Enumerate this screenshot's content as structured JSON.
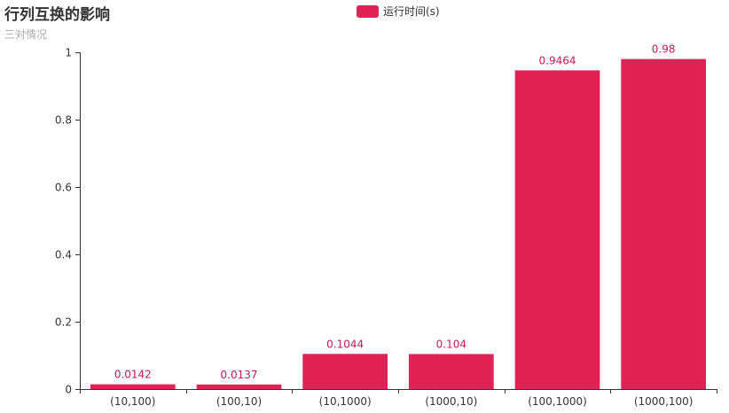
{
  "chart_data": {
    "type": "bar",
    "title": "行列互换的影响",
    "subtitle": "三对情况",
    "categories": [
      "(10,100)",
      "(100,10)",
      "(10,1000)",
      "(1000,10)",
      "(100,1000)",
      "(1000,100)"
    ],
    "series": [
      {
        "name": "运行时间(s)",
        "values": [
          0.0142,
          0.0137,
          0.1044,
          0.104,
          0.9464,
          0.98
        ]
      }
    ],
    "data_labels": [
      "0.0142",
      "0.0137",
      "0.1044",
      "0.104",
      "0.9464",
      "0.98"
    ],
    "ylim": [
      0,
      1
    ],
    "yticks": [
      0,
      0.2,
      0.4,
      0.6,
      0.8,
      1
    ],
    "ytick_labels": [
      "0",
      "0.2",
      "0.4",
      "0.6",
      "0.8",
      "1"
    ],
    "legend_position": "top-center",
    "grid": false,
    "colors": {
      "bar": "#e02254",
      "data_label": "#c2185b",
      "axis": "#333333"
    }
  }
}
